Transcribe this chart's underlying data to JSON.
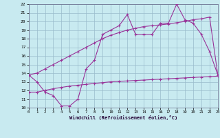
{
  "xlabel": "Windchill (Refroidissement éolien,°C)",
  "x_ticks": [
    0,
    1,
    2,
    3,
    4,
    5,
    6,
    7,
    8,
    9,
    10,
    11,
    12,
    13,
    14,
    15,
    16,
    17,
    18,
    19,
    20,
    21,
    22,
    23
  ],
  "ylim": [
    10,
    22
  ],
  "xlim": [
    0,
    23
  ],
  "y_ticks": [
    10,
    11,
    12,
    13,
    14,
    15,
    16,
    17,
    18,
    19,
    20,
    21,
    22
  ],
  "bg_color": "#c8eaf0",
  "grid_color": "#99bbcc",
  "line_color": "#993399",
  "line1_y": [
    13.8,
    13.0,
    11.8,
    11.4,
    10.2,
    10.2,
    11.0,
    14.5,
    15.5,
    18.5,
    19.0,
    19.5,
    20.8,
    18.5,
    18.5,
    18.5,
    19.8,
    19.8,
    22.0,
    20.2,
    19.8,
    18.5,
    16.5,
    13.8
  ],
  "line2_y": [
    13.8,
    14.0,
    14.5,
    15.0,
    15.5,
    16.0,
    16.5,
    17.0,
    17.5,
    18.0,
    18.4,
    18.7,
    19.0,
    19.2,
    19.4,
    19.5,
    19.6,
    19.7,
    19.85,
    20.0,
    20.2,
    20.3,
    20.5,
    13.8
  ],
  "line3_y": [
    11.8,
    11.8,
    12.0,
    12.2,
    12.35,
    12.5,
    12.6,
    12.7,
    12.8,
    12.9,
    13.0,
    13.05,
    13.1,
    13.15,
    13.2,
    13.25,
    13.3,
    13.35,
    13.4,
    13.45,
    13.5,
    13.55,
    13.6,
    13.65
  ]
}
